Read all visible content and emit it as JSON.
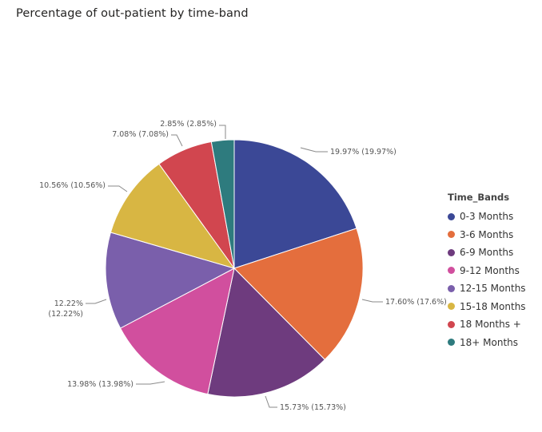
{
  "chart_data": {
    "type": "pie",
    "title": "Percentage of out-patient by time-band",
    "legend_title": "Time_Bands",
    "legend_position": "right",
    "slices": [
      {
        "label": "0-3 Months",
        "value": 19.97,
        "data_label": "19.97% (19.97%)",
        "color": "#3b4896"
      },
      {
        "label": "3-6 Months",
        "value": 17.6,
        "data_label": "17.60% (17.6%)",
        "color": "#e46e3d"
      },
      {
        "label": "6-9 Months",
        "value": 15.73,
        "data_label": "15.73% (15.73%)",
        "color": "#6e3b7e"
      },
      {
        "label": "9-12 Months",
        "value": 13.98,
        "data_label": "13.98% (13.98%)",
        "color": "#d14f9e"
      },
      {
        "label": "12-15 Months",
        "value": 12.22,
        "data_label": "12.22% (12.22%)",
        "color": "#7a5fab"
      },
      {
        "label": "15-18 Months",
        "value": 10.56,
        "data_label": "10.56% (10.56%)",
        "color": "#d8b643"
      },
      {
        "label": "18 Months +",
        "value": 7.08,
        "data_label": "7.08% (7.08%)",
        "color": "#d1464f"
      },
      {
        "label": "18+ Months",
        "value": 2.85,
        "data_label": "2.85% (2.85%)",
        "color": "#2e7b7e"
      }
    ]
  }
}
